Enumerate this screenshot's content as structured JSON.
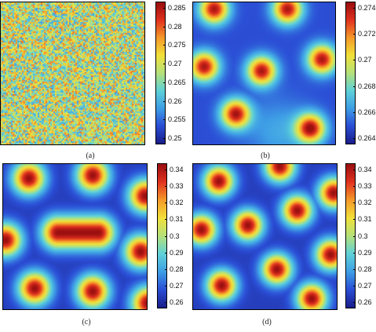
{
  "figure": {
    "panels": [
      {
        "id": "a",
        "caption": "(a)",
        "pattern": "noise",
        "colorbar": {
          "ticks": [
            "0.285",
            "0.28",
            "0.275",
            "0.27",
            "0.265",
            "0.26",
            "0.255",
            "0.25"
          ]
        }
      },
      {
        "id": "b",
        "caption": "(b)",
        "pattern": "faint-spots",
        "colorbar": {
          "ticks": [
            "0.274",
            "0.272",
            "0.27",
            "0.268",
            "0.266",
            "0.264"
          ]
        }
      },
      {
        "id": "c",
        "caption": "(c)",
        "pattern": "spots-and-stripe",
        "colorbar": {
          "ticks": [
            "0.34",
            "0.33",
            "0.32",
            "0.31",
            "0.3",
            "0.29",
            "0.28",
            "0.27",
            "0.26"
          ]
        }
      },
      {
        "id": "d",
        "caption": "(d)",
        "pattern": "hexagonal-spots",
        "colorbar": {
          "ticks": [
            "0.34",
            "0.33",
            "0.32",
            "0.31",
            "0.3",
            "0.29",
            "0.28",
            "0.27",
            "0.26"
          ]
        }
      }
    ],
    "colormap": [
      "#1a1f8c",
      "#2b4fd6",
      "#3fa0e6",
      "#5fd2d8",
      "#b6e27a",
      "#f2e13a",
      "#f59b2a",
      "#e2331f",
      "#9b0f10"
    ]
  }
}
